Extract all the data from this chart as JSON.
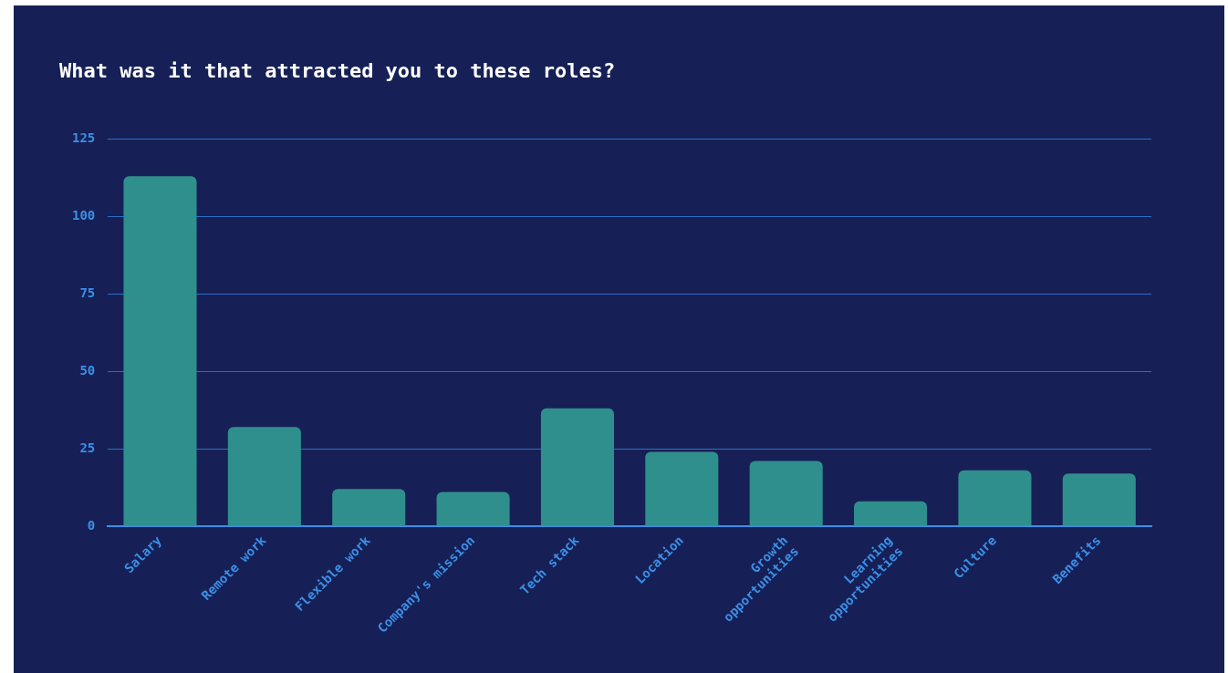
{
  "chart_data": {
    "type": "bar",
    "title": "What was it that attracted you to these roles?",
    "categories": [
      "Salary",
      "Remote work",
      "Flexible work",
      "Company's mission",
      "Tech stack",
      "Location",
      "Growth opportunities",
      "Learning opportunities",
      "Culture",
      "Benefits"
    ],
    "values": [
      113,
      32,
      12,
      11,
      38,
      24,
      21,
      8,
      18,
      17
    ],
    "color": "#2f8f8c",
    "ylim": [
      0,
      125
    ],
    "yticks": [
      0,
      25,
      50,
      75,
      100,
      125
    ],
    "grid": "y"
  }
}
